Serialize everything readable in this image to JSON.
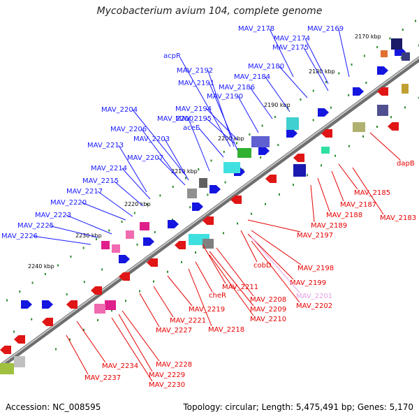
{
  "title": "Mycobacterium avium 104, complete genome",
  "footer": {
    "accession": "Accession: NC_008595",
    "summary": "Topology: circular; Length: 5,475,491 bp; Genes: 5,170"
  },
  "colors": {
    "forward_label": "#1a1aff",
    "reverse_label": "#e60000",
    "faded_label": "#e6a0e6",
    "backbone": "#808080",
    "ticks": "#2e8b2e"
  },
  "kbp_ticks": [
    "2170 kbp",
    "2180 kbp",
    "2190 kbp",
    "2200 kbp",
    "2210 kbp",
    "2220 kbp",
    "2230 kbp",
    "2240 kbp"
  ],
  "forward_genes": [
    "MAV_2178",
    "MAV_2169",
    "MAV_2174",
    "MAV_2175",
    "acpP",
    "MAV_2180",
    "MAV_2192",
    "MAV_2184",
    "MAV_2191",
    "MAV_2186",
    "MAV_2190",
    "MAV_2204",
    "MAV_2194",
    "MAV_2200",
    "MAV_2195",
    "MAV_2206",
    "aceE",
    "MAV_2203",
    "MAV_2213",
    "MAV_2207",
    "MAV_2214",
    "MAV_2215",
    "MAV_2217",
    "MAV_2220",
    "MAV_2223",
    "MAV_2225",
    "MAV_2226"
  ],
  "reverse_genes": [
    "dapB",
    "MAV_2185",
    "MAV_2187",
    "MAV_2183",
    "MAV_2188",
    "MAV_2189",
    "MAV_2197",
    "cobD",
    "MAV_2198",
    "MAV_2199",
    "MAV_2211",
    "MAV_2201",
    "MAV_2208",
    "cheR",
    "MAV_2202",
    "MAV_2209",
    "MAV_2219",
    "MAV_2210",
    "MAV_2221",
    "MAV_2218",
    "MAV_2227",
    "MAV_2234",
    "MAV_2228",
    "MAV_2229",
    "MAV_2237",
    "MAV_2230"
  ],
  "faded_genes": [
    "MAV_2201"
  ]
}
